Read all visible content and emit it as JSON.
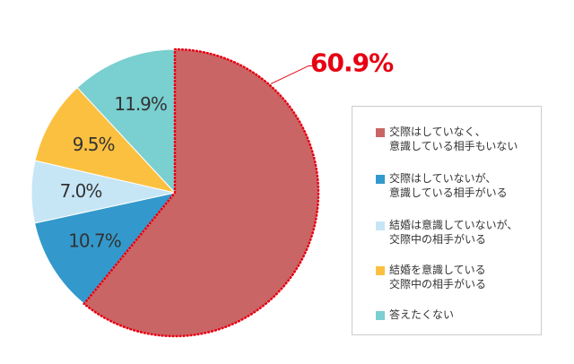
{
  "chart_data": {
    "type": "pie",
    "categories": [
      "交際はしていなく、\n意識している相手もいない",
      "交際はしていないが、\n意識している相手がいる",
      "結婚は意識していないが、\n交際中の相手がいる",
      "結婚を意識している\n交際中の相手がいる",
      "答えたくない"
    ],
    "values": [
      60.9,
      10.7,
      7.0,
      9.5,
      11.9
    ],
    "value_labels": [
      "60.9%",
      "10.7%",
      "7.0%",
      "9.5%",
      "11.9%"
    ],
    "colors": [
      "#c96565",
      "#3399cc",
      "#c6e6f6",
      "#fcc040",
      "#7acfd0"
    ],
    "highlight_color": "#e60012"
  }
}
